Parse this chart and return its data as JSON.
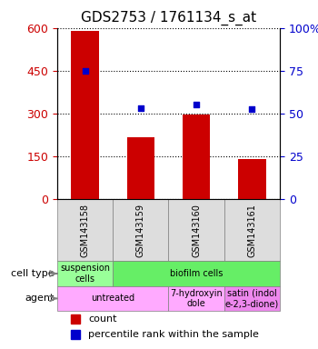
{
  "title": "GDS2753 / 1761134_s_at",
  "samples": [
    "GSM143158",
    "GSM143159",
    "GSM143160",
    "GSM143161"
  ],
  "counts": [
    590,
    215,
    295,
    140
  ],
  "percentile_ranks": [
    450,
    320,
    330,
    315
  ],
  "ylim_left": [
    0,
    600
  ],
  "ylim_right": [
    0,
    100
  ],
  "yticks_left": [
    0,
    150,
    300,
    450,
    600
  ],
  "yticks_right": [
    0,
    25,
    50,
    75,
    100
  ],
  "bar_color": "#cc0000",
  "dot_color": "#0000cc",
  "grid_color": "#000000",
  "cell_type_row": [
    {
      "label": "suspension\ncells",
      "color": "#99ff99",
      "col_span": [
        0,
        1
      ]
    },
    {
      "label": "biofilm cells",
      "color": "#66ff66",
      "col_span": [
        1,
        4
      ]
    }
  ],
  "agent_row": [
    {
      "label": "untreated",
      "color": "#ffaaff",
      "col_span": [
        0,
        2
      ]
    },
    {
      "label": "7-hydroxyin\ndole",
      "color": "#ffaaff",
      "col_span": [
        2,
        3
      ]
    },
    {
      "label": "satin (indol\ne-2,3-dione)",
      "color": "#ff88ff",
      "col_span": [
        3,
        4
      ]
    }
  ],
  "legend_count_color": "#cc0000",
  "legend_pct_color": "#0000cc",
  "row_label_cell_type": "cell type",
  "row_label_agent": "agent",
  "xlabel_color": "#cc0000",
  "ylabel_right_color": "#0000cc",
  "pct_scale": 6
}
